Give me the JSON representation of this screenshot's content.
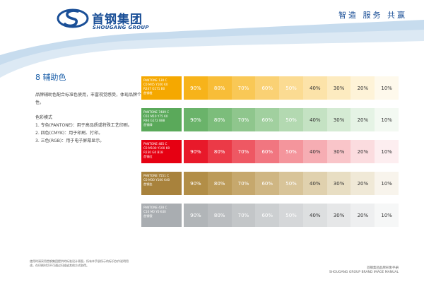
{
  "header": {
    "brand_cn": "首钢集团",
    "brand_en": "SHOUGANG GROUP",
    "slogan": "智造 服务 共赢",
    "brand_color": "#1a4f97"
  },
  "section": {
    "title": "8 辅助色",
    "intro": "品牌辅助色配合标准色使用，丰富视觉感受，体现品牌个性。",
    "modes_title": "色彩模式",
    "modes": [
      "1. 专色(PANTONE)：用于高品质或特殊工艺印刷。",
      "2. 四色(CMYK)：用于印刷、打印。",
      "3. 三色(RGB)：用于电子屏幕显示。"
    ]
  },
  "tint_labels": [
    "90%",
    "80%",
    "70%",
    "60%",
    "50%",
    "40%",
    "30%",
    "20%",
    "10%"
  ],
  "colors": [
    {
      "lines": [
        "PANTONE 130 C",
        "C0 M45 Y100 K0",
        "R247 G171 B0",
        "首钢橙"
      ],
      "base": "#f5a800",
      "tints": [
        "#f7b31a",
        "#f8bd38",
        "#f9c856",
        "#fad174",
        "#fbdb92",
        "#fce3a9",
        "#fdebc0",
        "#fef3d8",
        "#fef9ec"
      ]
    },
    {
      "lines": [
        "PANTONE 7489 C",
        "C65 M10 Y75 K0",
        "R94 G172 B88",
        "首钢绿"
      ],
      "base": "#5aa95a",
      "tints": [
        "#6ab36a",
        "#7cbd7b",
        "#8fc68d",
        "#a1d09f",
        "#b3d9b1",
        "#c4e2c3",
        "#d5ebd4",
        "#e5f3e5",
        "#f3f9f2"
      ]
    },
    {
      "lines": [
        "PANTONE 485 C",
        "C0 M100 Y100 K0",
        "R230 G0 B18",
        "首钢红"
      ],
      "base": "#e60012",
      "tints": [
        "#e8192a",
        "#eb3a47",
        "#ee5863",
        "#f17680",
        "#f4959c",
        "#f6adb3",
        "#f9c5c9",
        "#fbdcdf",
        "#fdeef0"
      ]
    },
    {
      "lines": [
        "PANTONE 7551 C",
        "C0 M30 Y100 K40",
        "首钢金"
      ],
      "base": "#a8823c",
      "tints": [
        "#b28e47",
        "#bc9b59",
        "#c6a86d",
        "#cfb683",
        "#d8c499",
        "#e0d1ae",
        "#e8dec3",
        "#f0e9d7",
        "#f8f4ec"
      ]
    },
    {
      "lines": [
        "PANTONE 428 C",
        "C10 M0 Y0 K40",
        "首钢银"
      ],
      "base": "#a9adb1",
      "tints": [
        "#b1b5b8",
        "#babdc0",
        "#c3c6c8",
        "#cccfd1",
        "#d5d7d9",
        "#dddfe0",
        "#e6e7e8",
        "#eeeff0",
        "#f6f7f7"
      ]
    }
  ],
  "footer": {
    "note": "使用时请采用首钢集团提供的标准设计原图，所有本手册所示的标识仅作说明用途，在印刷时切不可通过扫描或其他方式取得。",
    "manual_cn": "首钢集团品牌形象手册",
    "manual_en": "SHOUGANG GROUP BRAND IMAGE MANUAL"
  }
}
